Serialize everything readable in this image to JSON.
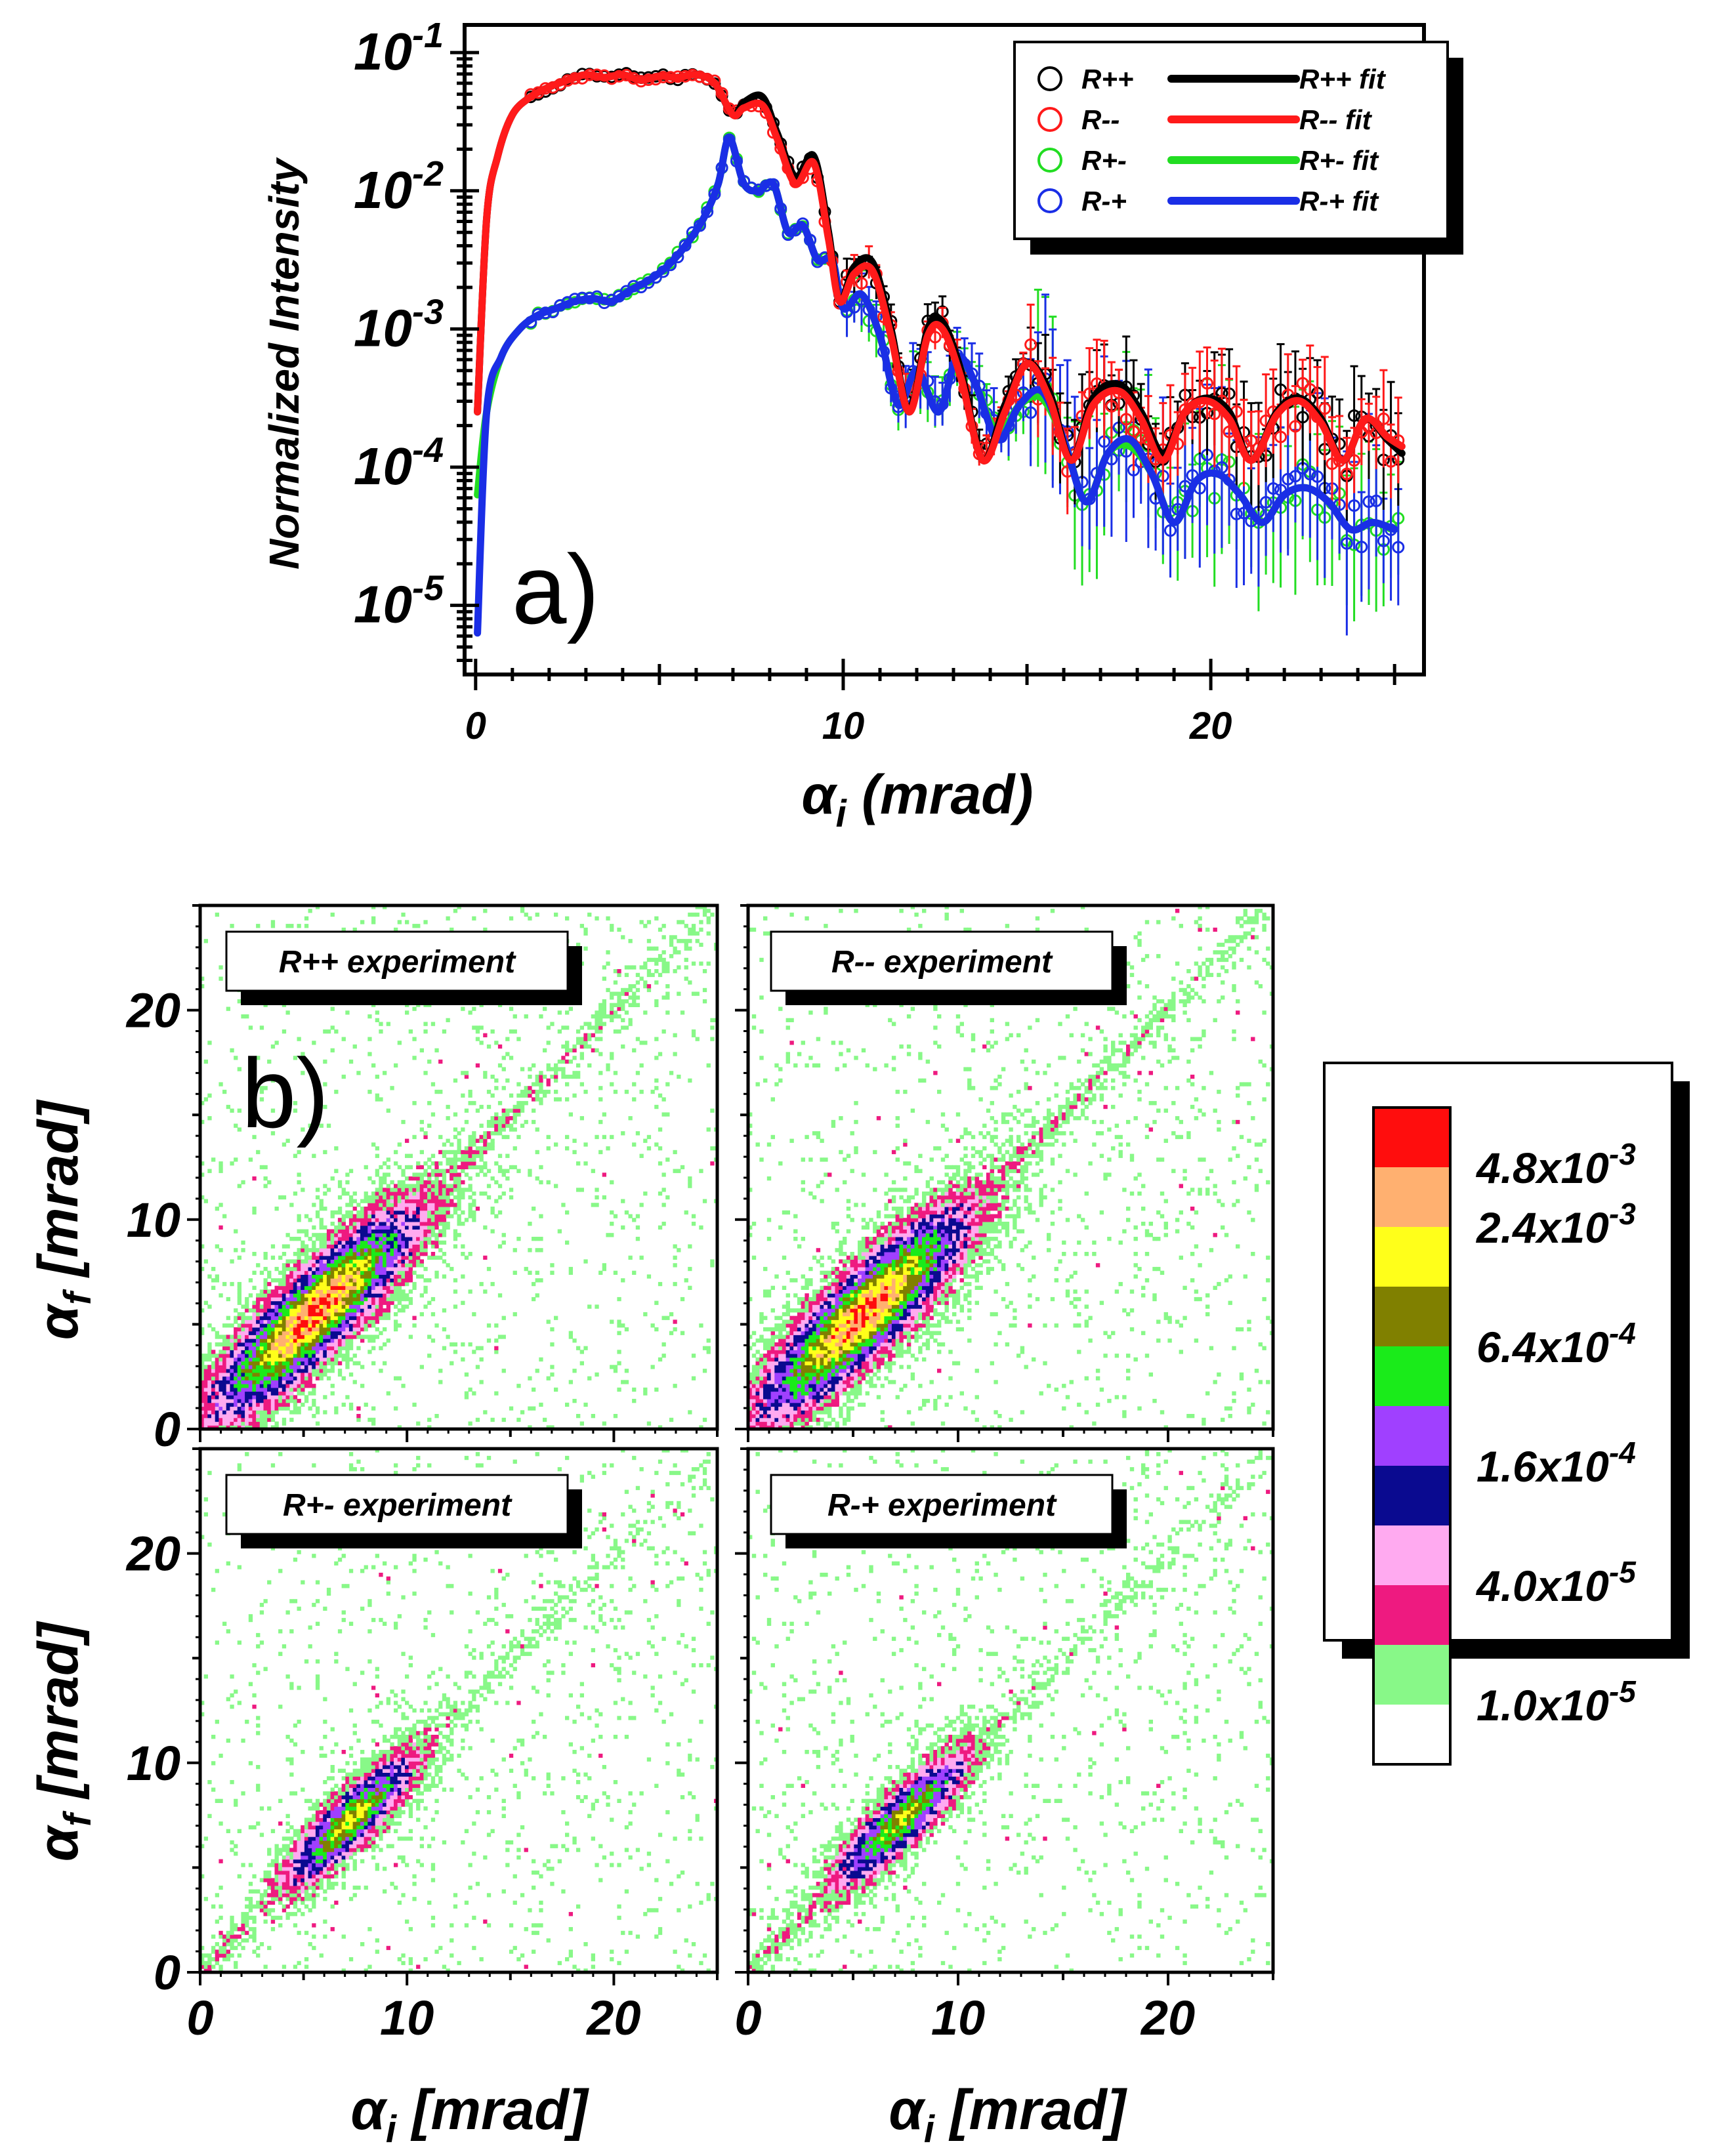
{
  "colors": {
    "rpp": "#000000",
    "rmm": "#ff1a1a",
    "rpm": "#22dd22",
    "rmp": "#1a2ee6"
  },
  "chart_data": [
    {
      "type": "line",
      "panel_label": "a)",
      "xlabel_symbol": "α",
      "xlabel_sub": "i",
      "xlabel_unit": " (mrad)",
      "ylabel": "Normalized Intensity",
      "xlim": [
        -0.3,
        25.8
      ],
      "ylim_log10": [
        -5.5,
        -0.8
      ],
      "x_ticks": [
        "0",
        "10",
        "20"
      ],
      "x_tick_values": [
        0,
        10,
        20
      ],
      "y_ticks": [
        {
          "base": "10",
          "exp": "-1",
          "value": -1
        },
        {
          "base": "10",
          "exp": "-2",
          "value": -2
        },
        {
          "base": "10",
          "exp": "-3",
          "value": -3
        },
        {
          "base": "10",
          "exp": "-4",
          "value": -4
        },
        {
          "base": "10",
          "exp": "-5",
          "value": -5
        }
      ],
      "legend": [
        {
          "key": "rpp",
          "data_label": "R++",
          "fit_label": "R++ fit"
        },
        {
          "key": "rmm",
          "data_label": "R--",
          "fit_label": "R-- fit"
        },
        {
          "key": "rpm",
          "data_label": "R+-",
          "fit_label": "R+- fit"
        },
        {
          "key": "rmp",
          "data_label": "R-+",
          "fit_label": "R-+ fit"
        }
      ],
      "series": [
        {
          "name": "R++ fit",
          "key": "rpp",
          "x": [
            0.05,
            0.3,
            0.6,
            1.0,
            1.5,
            2.0,
            2.5,
            3.0,
            3.5,
            4.0,
            4.5,
            5.0,
            5.5,
            6.0,
            6.5,
            7.0,
            7.3,
            7.8,
            8.2,
            8.7,
            9.2,
            9.6,
            9.9,
            10.3,
            10.8,
            11.3,
            11.8,
            12.3,
            12.7,
            13.2,
            13.8,
            14.4,
            15.0,
            15.6,
            16.2,
            16.8,
            17.5,
            18.1,
            18.7,
            19.3,
            19.9,
            20.5,
            21.1,
            21.8,
            22.4,
            23.0,
            23.6,
            24.2,
            24.8,
            25.2
          ],
          "y": [
            -3.6,
            -2.2,
            -1.75,
            -1.45,
            -1.32,
            -1.25,
            -1.2,
            -1.16,
            -1.18,
            -1.16,
            -1.2,
            -1.17,
            -1.18,
            -1.16,
            -1.22,
            -1.45,
            -1.36,
            -1.32,
            -1.58,
            -1.9,
            -1.75,
            -2.3,
            -2.8,
            -2.55,
            -2.52,
            -3.0,
            -3.6,
            -3.0,
            -2.95,
            -3.3,
            -3.95,
            -3.55,
            -3.25,
            -3.45,
            -3.95,
            -3.5,
            -3.4,
            -3.6,
            -3.9,
            -3.6,
            -3.5,
            -3.6,
            -3.95,
            -3.6,
            -3.5,
            -3.65,
            -3.95,
            -3.65,
            -3.8,
            -3.9
          ]
        },
        {
          "name": "R-- fit",
          "key": "rmm",
          "x": [
            0.05,
            0.3,
            0.6,
            1.0,
            1.5,
            2.0,
            2.5,
            3.0,
            3.5,
            4.0,
            4.5,
            5.0,
            5.5,
            6.0,
            6.5,
            7.0,
            7.3,
            7.8,
            8.2,
            8.7,
            9.2,
            9.6,
            9.9,
            10.3,
            10.8,
            11.3,
            11.8,
            12.3,
            12.7,
            13.2,
            13.8,
            14.4,
            15.0,
            15.6,
            16.2,
            16.8,
            17.5,
            18.1,
            18.7,
            19.3,
            19.9,
            20.5,
            21.1,
            21.8,
            22.4,
            23.0,
            23.6,
            24.2,
            24.8,
            25.2
          ],
          "y": [
            -3.6,
            -2.2,
            -1.75,
            -1.45,
            -1.32,
            -1.25,
            -1.2,
            -1.16,
            -1.18,
            -1.16,
            -1.2,
            -1.17,
            -1.18,
            -1.16,
            -1.22,
            -1.45,
            -1.4,
            -1.38,
            -1.62,
            -1.95,
            -1.8,
            -2.35,
            -2.8,
            -2.6,
            -2.58,
            -3.05,
            -3.6,
            -3.05,
            -3.0,
            -3.35,
            -3.95,
            -3.6,
            -3.25,
            -3.5,
            -3.95,
            -3.55,
            -3.45,
            -3.65,
            -3.95,
            -3.6,
            -3.52,
            -3.65,
            -3.95,
            -3.62,
            -3.52,
            -3.68,
            -3.95,
            -3.65,
            -3.78,
            -3.85
          ]
        },
        {
          "name": "R+- fit",
          "key": "rpm",
          "x": [
            0.05,
            0.3,
            0.7,
            1.2,
            1.7,
            2.2,
            2.7,
            3.2,
            3.7,
            4.2,
            4.7,
            5.2,
            5.7,
            6.2,
            6.6,
            6.9,
            7.3,
            7.7,
            8.1,
            8.5,
            8.9,
            9.3,
            9.7,
            10.0,
            10.5,
            11.0,
            11.5,
            12.0,
            12.6,
            13.1,
            13.6,
            14.2,
            14.8,
            15.4,
            16.0,
            16.6,
            17.2,
            17.8,
            18.4,
            19.0,
            19.6,
            20.2,
            20.8,
            21.4,
            22.0,
            22.6,
            23.2,
            23.8,
            24.4,
            25.0
          ],
          "y": [
            -4.2,
            -3.6,
            -3.2,
            -3.0,
            -2.9,
            -2.85,
            -2.8,
            -2.78,
            -2.8,
            -2.72,
            -2.65,
            -2.55,
            -2.4,
            -2.2,
            -1.95,
            -1.62,
            -1.95,
            -2.0,
            -1.95,
            -2.3,
            -2.25,
            -2.5,
            -2.5,
            -2.85,
            -2.75,
            -3.05,
            -3.55,
            -3.3,
            -3.6,
            -3.2,
            -3.4,
            -3.75,
            -3.55,
            -3.5,
            -3.8,
            -4.25,
            -3.9,
            -3.85,
            -4.05,
            -4.4,
            -4.1,
            -4.05,
            -4.2,
            -4.4,
            -4.2,
            -4.15,
            -4.25,
            -4.45,
            -4.4,
            -4.45
          ]
        },
        {
          "name": "R-+ fit",
          "key": "rmp",
          "x": [
            0.05,
            0.3,
            0.7,
            1.2,
            1.7,
            2.2,
            2.7,
            3.2,
            3.7,
            4.2,
            4.7,
            5.2,
            5.7,
            6.2,
            6.6,
            6.9,
            7.3,
            7.7,
            8.1,
            8.5,
            8.9,
            9.3,
            9.7,
            10.0,
            10.5,
            11.0,
            11.5,
            12.0,
            12.6,
            13.1,
            13.6,
            14.2,
            14.8,
            15.4,
            16.0,
            16.6,
            17.2,
            17.8,
            18.4,
            19.0,
            19.6,
            20.2,
            20.8,
            21.4,
            22.0,
            22.6,
            23.2,
            23.8,
            24.4,
            25.0
          ],
          "y": [
            -5.2,
            -3.6,
            -3.2,
            -3.0,
            -2.9,
            -2.85,
            -2.8,
            -2.78,
            -2.8,
            -2.72,
            -2.65,
            -2.55,
            -2.4,
            -2.2,
            -1.95,
            -1.62,
            -1.95,
            -2.0,
            -1.95,
            -2.3,
            -2.25,
            -2.5,
            -2.5,
            -2.85,
            -2.75,
            -3.05,
            -3.55,
            -3.3,
            -3.6,
            -3.2,
            -3.4,
            -3.8,
            -3.55,
            -3.45,
            -3.8,
            -4.25,
            -3.9,
            -3.8,
            -4.05,
            -4.4,
            -4.1,
            -4.05,
            -4.2,
            -4.4,
            -4.2,
            -4.15,
            -4.25,
            -4.45,
            -4.4,
            -4.45
          ]
        }
      ]
    },
    {
      "type": "heatmap",
      "panel_label": "b)",
      "xlim": [
        0,
        25
      ],
      "ylim": [
        0,
        25
      ],
      "x_ticks": [
        "0",
        "10",
        "20"
      ],
      "x_tick_values": [
        0,
        10,
        20
      ],
      "y_ticks": [
        "0",
        "10",
        "20"
      ],
      "y_tick_values": [
        0,
        10,
        20
      ],
      "xlabel_symbol": "α",
      "xlabel_sub": "i",
      "xlabel_unit": " [mrad]",
      "ylabel_symbol": "α",
      "ylabel_sub": "f",
      "ylabel_unit": " [mrad]",
      "colorscale": [
        {
          "color": "#ff0d0d",
          "label_base": "4.8x10",
          "label_exp": "-3"
        },
        {
          "color": "#ffb070",
          "label_base": "2.4x10",
          "label_exp": "-3"
        },
        {
          "color": "#ffff1a",
          "label_base": "",
          "label_exp": ""
        },
        {
          "color": "#808000",
          "label_base": "6.4x10",
          "label_exp": "-4"
        },
        {
          "color": "#1aeb1a",
          "label_base": "",
          "label_exp": ""
        },
        {
          "color": "#a040ff",
          "label_base": "1.6x10",
          "label_exp": "-4"
        },
        {
          "color": "#0a0a90",
          "label_base": "",
          "label_exp": ""
        },
        {
          "color": "#ffaaf0",
          "label_base": "4.0x10",
          "label_exp": "-5"
        },
        {
          "color": "#ee1a80",
          "label_base": "",
          "label_exp": ""
        },
        {
          "color": "#88f888",
          "label_base": "1.0x10",
          "label_exp": "-5"
        },
        {
          "color": "#ffffff",
          "label_base": "",
          "label_exp": ""
        }
      ],
      "panels": [
        {
          "title": "R++ experiment",
          "peak_x": 5.5,
          "peak_y": 5.5,
          "peak_level": 10,
          "width": 1.15,
          "tail": 1.0
        },
        {
          "title": "R-- experiment",
          "peak_x": 5.5,
          "peak_y": 5.5,
          "peak_level": 10,
          "width": 1.15,
          "tail": 1.0
        },
        {
          "title": "R+- experiment",
          "peak_x": 7.3,
          "peak_y": 7.3,
          "peak_level": 8,
          "width": 0.75,
          "tail": 0.6
        },
        {
          "title": "R-+ experiment",
          "peak_x": 7.3,
          "peak_y": 7.3,
          "peak_level": 8,
          "width": 0.75,
          "tail": 0.6
        }
      ]
    }
  ]
}
